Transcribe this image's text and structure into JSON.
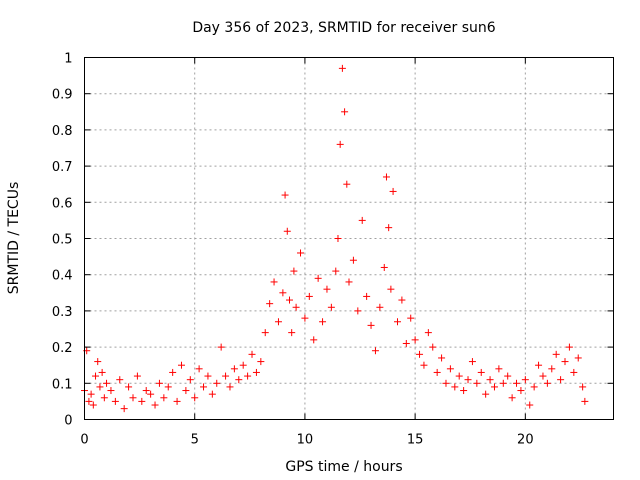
{
  "chart_data": {
    "type": "scatter",
    "title": "Day 356 of 2023, SRMTID for receiver sun6",
    "xlabel": "GPS time / hours",
    "ylabel": "SRMTID / TECUs",
    "xlim": [
      0,
      24
    ],
    "ylim": [
      0,
      1
    ],
    "x_ticks": [
      "0",
      "5",
      "10",
      "15",
      "20"
    ],
    "y_ticks": [
      "0",
      "0.1",
      "0.2",
      "0.3",
      "0.4",
      "0.5",
      "0.6",
      "0.7",
      "0.8",
      "0.9",
      "1"
    ],
    "grid": true,
    "marker": "+",
    "color": "#ff0000",
    "series": [
      {
        "name": "SRMTID",
        "x": [
          0.0,
          0.1,
          0.2,
          0.3,
          0.4,
          0.5,
          0.6,
          0.7,
          0.8,
          0.9,
          1.0,
          1.2,
          1.4,
          1.6,
          1.8,
          2.0,
          2.2,
          2.4,
          2.6,
          2.8,
          3.0,
          3.2,
          3.4,
          3.6,
          3.8,
          4.0,
          4.2,
          4.4,
          4.6,
          4.8,
          5.0,
          5.2,
          5.4,
          5.6,
          5.8,
          6.0,
          6.2,
          6.4,
          6.6,
          6.8,
          7.0,
          7.2,
          7.4,
          7.6,
          7.8,
          8.0,
          8.2,
          8.4,
          8.6,
          8.8,
          9.0,
          9.1,
          9.2,
          9.3,
          9.4,
          9.5,
          9.6,
          9.8,
          10.0,
          10.2,
          10.4,
          10.6,
          10.8,
          11.0,
          11.2,
          11.4,
          11.5,
          11.6,
          11.7,
          11.8,
          11.9,
          12.0,
          12.2,
          12.4,
          12.6,
          12.8,
          13.0,
          13.2,
          13.4,
          13.6,
          13.7,
          13.8,
          13.9,
          14.0,
          14.2,
          14.4,
          14.6,
          14.8,
          15.0,
          15.2,
          15.4,
          15.6,
          15.8,
          16.0,
          16.2,
          16.4,
          16.6,
          16.8,
          17.0,
          17.2,
          17.4,
          17.6,
          17.8,
          18.0,
          18.2,
          18.4,
          18.6,
          18.8,
          19.0,
          19.2,
          19.4,
          19.6,
          19.8,
          20.0,
          20.2,
          20.4,
          20.6,
          20.8,
          21.0,
          21.2,
          21.4,
          21.6,
          21.8,
          22.0,
          22.2,
          22.4,
          22.6,
          22.7
        ],
        "y": [
          0.08,
          0.19,
          0.05,
          0.07,
          0.04,
          0.12,
          0.16,
          0.09,
          0.13,
          0.06,
          0.1,
          0.08,
          0.05,
          0.11,
          0.03,
          0.09,
          0.06,
          0.12,
          0.05,
          0.08,
          0.07,
          0.04,
          0.1,
          0.06,
          0.09,
          0.13,
          0.05,
          0.15,
          0.08,
          0.11,
          0.06,
          0.14,
          0.09,
          0.12,
          0.07,
          0.1,
          0.2,
          0.12,
          0.09,
          0.14,
          0.11,
          0.15,
          0.12,
          0.18,
          0.13,
          0.16,
          0.24,
          0.32,
          0.38,
          0.27,
          0.35,
          0.62,
          0.52,
          0.33,
          0.24,
          0.41,
          0.31,
          0.46,
          0.28,
          0.34,
          0.22,
          0.39,
          0.27,
          0.36,
          0.31,
          0.41,
          0.5,
          0.76,
          0.97,
          0.85,
          0.65,
          0.38,
          0.44,
          0.3,
          0.55,
          0.34,
          0.26,
          0.19,
          0.31,
          0.42,
          0.67,
          0.53,
          0.36,
          0.63,
          0.27,
          0.33,
          0.21,
          0.28,
          0.22,
          0.18,
          0.15,
          0.24,
          0.2,
          0.13,
          0.17,
          0.1,
          0.14,
          0.09,
          0.12,
          0.08,
          0.11,
          0.16,
          0.1,
          0.13,
          0.07,
          0.11,
          0.09,
          0.14,
          0.1,
          0.12,
          0.06,
          0.1,
          0.08,
          0.11,
          0.04,
          0.09,
          0.15,
          0.12,
          0.1,
          0.14,
          0.18,
          0.11,
          0.16,
          0.2,
          0.13,
          0.17,
          0.09,
          0.05
        ]
      }
    ]
  }
}
